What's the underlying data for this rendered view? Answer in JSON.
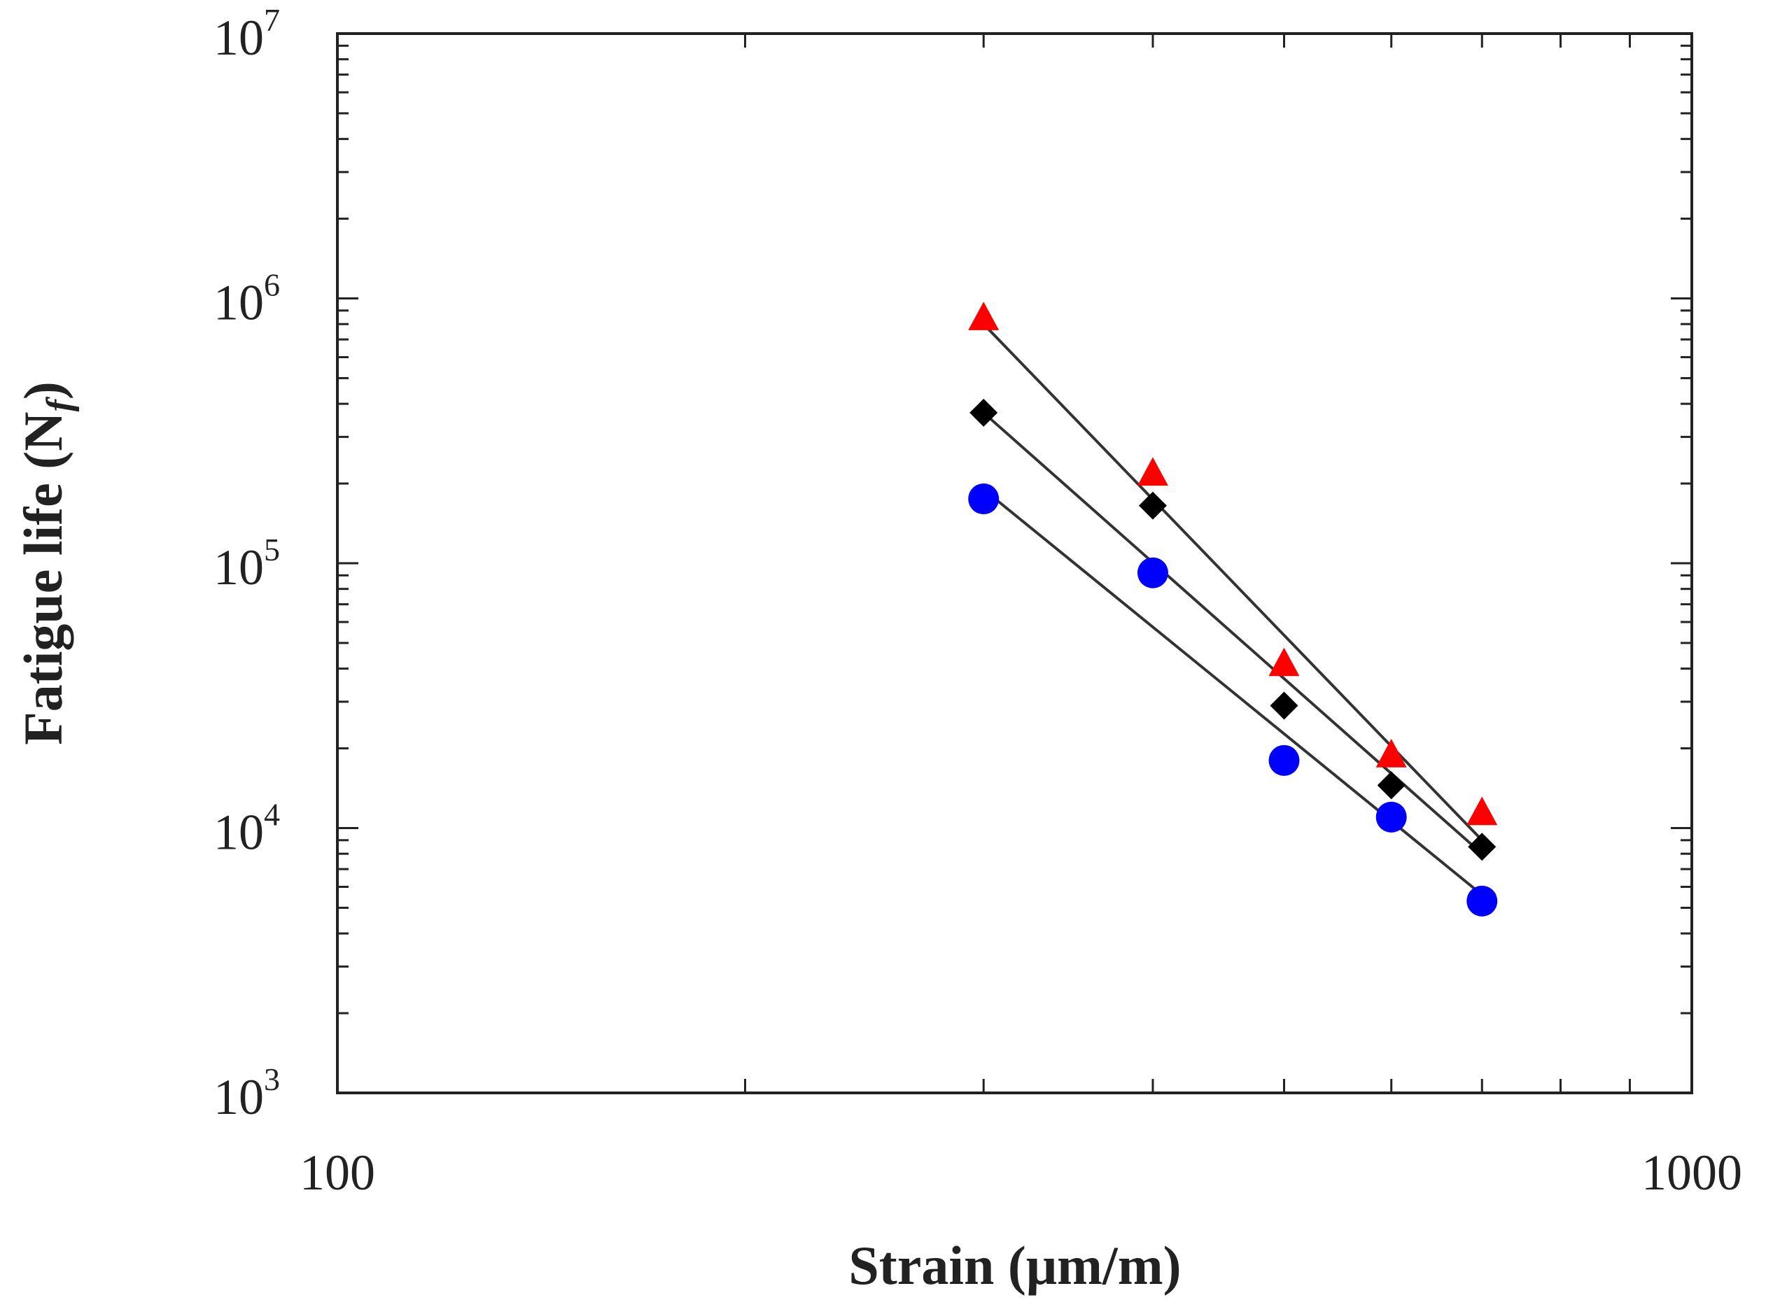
{
  "chart_data": {
    "type": "scatter",
    "title": "",
    "xlabel": "Strain (μm/m)",
    "ylabel": "Fatigue life (N",
    "ylabel_sub": "f",
    "ylabel_close": ")",
    "xscale": "log",
    "yscale": "log",
    "xlim": [
      100,
      1000
    ],
    "ylim": [
      1000,
      10000000
    ],
    "x_tick_labels": [
      {
        "value": 100,
        "label": "100"
      },
      {
        "value": 1000,
        "label": "1000"
      }
    ],
    "y_tick_labels": [
      {
        "value": 1000,
        "base": "10",
        "exp": "3"
      },
      {
        "value": 10000,
        "base": "10",
        "exp": "4"
      },
      {
        "value": 100000,
        "base": "10",
        "exp": "5"
      },
      {
        "value": 1000000,
        "base": "10",
        "exp": "6"
      },
      {
        "value": 10000000,
        "base": "10",
        "exp": "7"
      }
    ],
    "grid": false,
    "legend": null,
    "series": [
      {
        "name": "triangle series",
        "marker": "triangle",
        "color": "#ff0000",
        "x": [
          300,
          400,
          500,
          600,
          700
        ],
        "y": [
          850000,
          220000,
          42000,
          19000,
          11500
        ],
        "fit": {
          "x": [
            300,
            700
          ],
          "y": [
            800000,
            9000
          ]
        }
      },
      {
        "name": "diamond series",
        "marker": "diamond",
        "color": "#000000",
        "x": [
          300,
          400,
          500,
          600,
          700
        ],
        "y": [
          370000,
          165000,
          29000,
          14500,
          8500
        ],
        "fit": {
          "x": [
            300,
            700
          ],
          "y": [
            370000,
            8000
          ]
        }
      },
      {
        "name": "circle series",
        "marker": "circle",
        "color": "#0000ff",
        "x": [
          300,
          400,
          500,
          600,
          700
        ],
        "y": [
          175000,
          92000,
          18000,
          11000,
          5300
        ],
        "fit": {
          "x": [
            300,
            700
          ],
          "y": [
            190000,
            5600
          ]
        }
      }
    ],
    "fit_line_color": "#333333"
  }
}
